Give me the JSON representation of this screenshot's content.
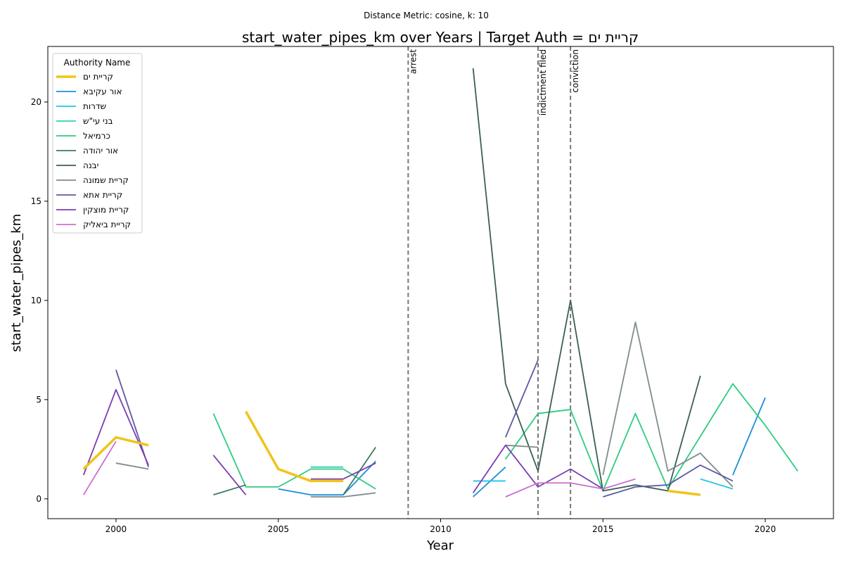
{
  "suptitle": "Distance Metric: cosine, k: 10",
  "title": "start_water_pipes_km over Years | Target Auth = קריית ים",
  "xlabel": "Year",
  "ylabel": "start_water_pipes_km",
  "legend_title": "Authority Name",
  "chart_data": {
    "type": "line",
    "title": "start_water_pipes_km over Years | Target Auth = קריית ים",
    "xlabel": "Year",
    "ylabel": "start_water_pipes_km",
    "xlim": [
      1997.9,
      2022.1
    ],
    "ylim": [
      -1.0,
      22.8
    ],
    "xticks": [
      2000,
      2005,
      2010,
      2015,
      2020
    ],
    "yticks": [
      0,
      5,
      10,
      15,
      20
    ],
    "grid": false,
    "legend_position": "top-left",
    "events": [
      {
        "label": "arrest",
        "x": 2009
      },
      {
        "label": "indictment filed",
        "x": 2013
      },
      {
        "label": "conviction",
        "x": 2014
      }
    ],
    "series": [
      {
        "name": "קריית ים",
        "color": "#f0c419",
        "target": true,
        "points": [
          [
            1999,
            1.5
          ],
          [
            2000,
            3.1
          ],
          [
            2001,
            2.7
          ],
          null,
          [
            2004,
            4.4
          ],
          [
            2005,
            1.5
          ],
          [
            2006,
            0.9
          ],
          [
            2007,
            0.9
          ],
          null,
          [
            2017,
            0.4
          ],
          [
            2018,
            0.2
          ]
        ]
      },
      {
        "name": "אור עקיבא",
        "color": "#1c8fd9",
        "points": [
          [
            2005,
            0.5
          ],
          [
            2006,
            0.2
          ],
          [
            2007,
            0.2
          ],
          [
            2008,
            1.9
          ],
          null,
          [
            2011,
            0.1
          ],
          [
            2012,
            1.6
          ],
          null,
          [
            2019,
            1.2
          ],
          [
            2020,
            5.1
          ]
        ]
      },
      {
        "name": "שדרות",
        "color": "#22c6e6",
        "points": [
          [
            2011,
            0.9
          ],
          [
            2012,
            0.9
          ],
          null,
          [
            2018,
            1.0
          ],
          [
            2019,
            0.5
          ]
        ]
      },
      {
        "name": "בני עי\"ש",
        "color": "#2bd2b4",
        "points": [
          [
            2006,
            1.6
          ],
          [
            2007,
            1.6
          ]
        ]
      },
      {
        "name": "כרמיאל",
        "color": "#2ecc80",
        "points": [
          [
            2003,
            4.3
          ],
          [
            2004,
            0.6
          ],
          [
            2005,
            0.6
          ],
          [
            2006,
            1.5
          ],
          [
            2007,
            1.5
          ],
          [
            2008,
            0.5
          ],
          null,
          [
            2012,
            2.0
          ],
          [
            2013,
            4.3
          ],
          [
            2014,
            4.5
          ],
          [
            2015,
            0.4
          ],
          [
            2016,
            4.3
          ],
          [
            2017,
            0.5
          ],
          [
            2019,
            5.8
          ],
          [
            2020,
            3.7
          ],
          [
            2021,
            1.4
          ]
        ]
      },
      {
        "name": "אור יהודה",
        "color": "#3b7a60",
        "points": [
          [
            2003,
            0.2
          ],
          [
            2004,
            0.7
          ],
          null,
          [
            2007,
            0.2
          ],
          [
            2008,
            2.6
          ]
        ]
      },
      {
        "name": "יבנה",
        "color": "#3b5f55",
        "points": [
          [
            2011,
            21.7
          ],
          [
            2012,
            5.8
          ],
          [
            2013,
            1.4
          ],
          [
            2014,
            10.0
          ],
          [
            2015,
            0.4
          ],
          [
            2016,
            0.7
          ],
          [
            2017,
            0.4
          ],
          [
            2018,
            6.2
          ]
        ]
      },
      {
        "name": "קריית שמונה",
        "color": "#7f8c8d",
        "points": [
          [
            2000,
            1.8
          ],
          [
            2001,
            1.5
          ],
          null,
          [
            2006,
            0.1
          ],
          [
            2007,
            0.1
          ],
          [
            2008,
            0.3
          ],
          null,
          [
            2012,
            2.7
          ],
          [
            2013,
            2.6
          ],
          null,
          [
            2015,
            1.2
          ],
          [
            2016,
            8.9
          ],
          [
            2017,
            1.4
          ],
          [
            2018,
            2.3
          ],
          [
            2019,
            0.6
          ]
        ]
      },
      {
        "name": "קריית אתא",
        "color": "#5d5aa3",
        "points": [
          [
            2000,
            6.5
          ],
          [
            2001,
            1.6
          ],
          null,
          [
            2012,
            3.1
          ],
          [
            2013,
            7.0
          ],
          null,
          [
            2015,
            0.1
          ],
          [
            2016,
            0.6
          ],
          [
            2017,
            0.7
          ],
          [
            2018,
            1.7
          ],
          [
            2019,
            0.9
          ]
        ]
      },
      {
        "name": "קריית מוצקין",
        "color": "#7a3db0",
        "points": [
          [
            1999,
            1.2
          ],
          [
            2000,
            5.5
          ],
          [
            2001,
            1.7
          ],
          null,
          [
            2003,
            2.2
          ],
          [
            2004,
            0.2
          ],
          null,
          [
            2006,
            1.0
          ],
          [
            2007,
            1.0
          ],
          [
            2008,
            1.8
          ],
          null,
          [
            2011,
            0.3
          ],
          [
            2012,
            2.7
          ],
          [
            2013,
            0.6
          ],
          [
            2014,
            1.5
          ],
          [
            2015,
            0.5
          ]
        ]
      },
      {
        "name": "קריית ביאליק",
        "color": "#cc6fcf",
        "points": [
          [
            1999,
            0.2
          ],
          [
            2000,
            2.9
          ],
          null,
          [
            2012,
            0.1
          ],
          [
            2013,
            0.8
          ],
          [
            2014,
            0.8
          ],
          [
            2015,
            0.5
          ],
          [
            2016,
            1.0
          ]
        ]
      }
    ]
  }
}
